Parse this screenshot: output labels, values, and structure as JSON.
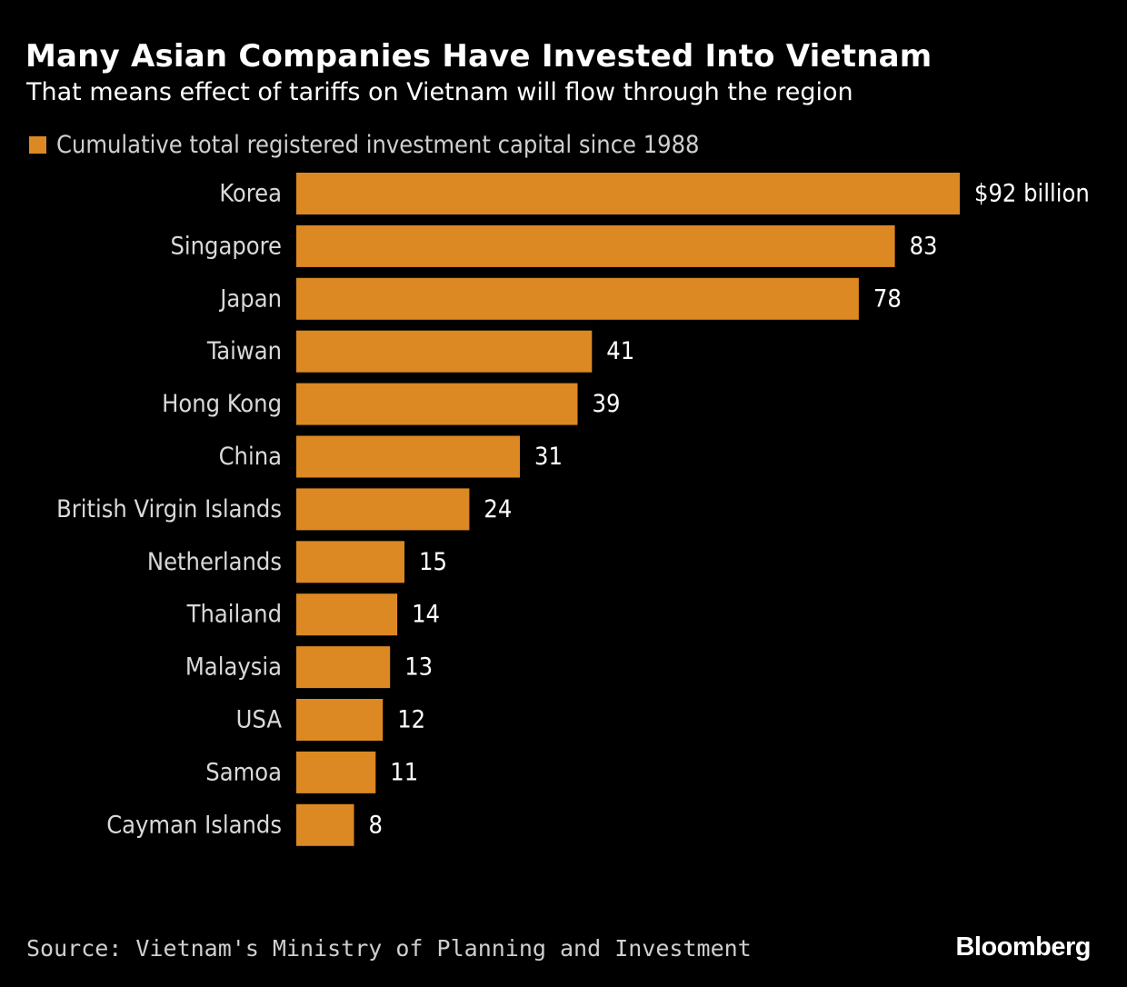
{
  "title": "Many Asian Companies Have Invested Into Vietnam",
  "subtitle": "That means effect of tariffs on Vietnam will flow through the region",
  "colors": {
    "background": "#000000",
    "bar": "#dc8823",
    "text": "#ffffff",
    "muted_text": "#cfcfcf"
  },
  "chart_data": {
    "type": "bar",
    "orientation": "horizontal",
    "title": "Many Asian Companies Have Invested Into Vietnam",
    "subtitle": "That means effect of tariffs on Vietnam will flow through the region",
    "legend": [
      "Cumulative total registered investment capital since 1988"
    ],
    "legend_position": "top-left",
    "unit": "billion USD",
    "categories": [
      "Korea",
      "Singapore",
      "Japan",
      "Taiwan",
      "Hong Kong",
      "China",
      "British Virgin Islands",
      "Netherlands",
      "Thailand",
      "Malaysia",
      "USA",
      "Samoa",
      "Cayman Islands"
    ],
    "series": [
      {
        "name": "Cumulative total registered investment capital since 1988",
        "values": [
          92,
          83,
          78,
          41,
          39,
          31,
          24,
          15,
          14,
          13,
          12,
          11,
          8
        ]
      }
    ],
    "data_labels": [
      "$92 billion",
      "83",
      "78",
      "41",
      "39",
      "31",
      "24",
      "15",
      "14",
      "13",
      "12",
      "11",
      "8"
    ],
    "xlim": [
      0,
      92
    ],
    "grid": false
  },
  "source": "Source: Vietnam's Ministry of Planning and Investment",
  "brand": "Bloomberg"
}
